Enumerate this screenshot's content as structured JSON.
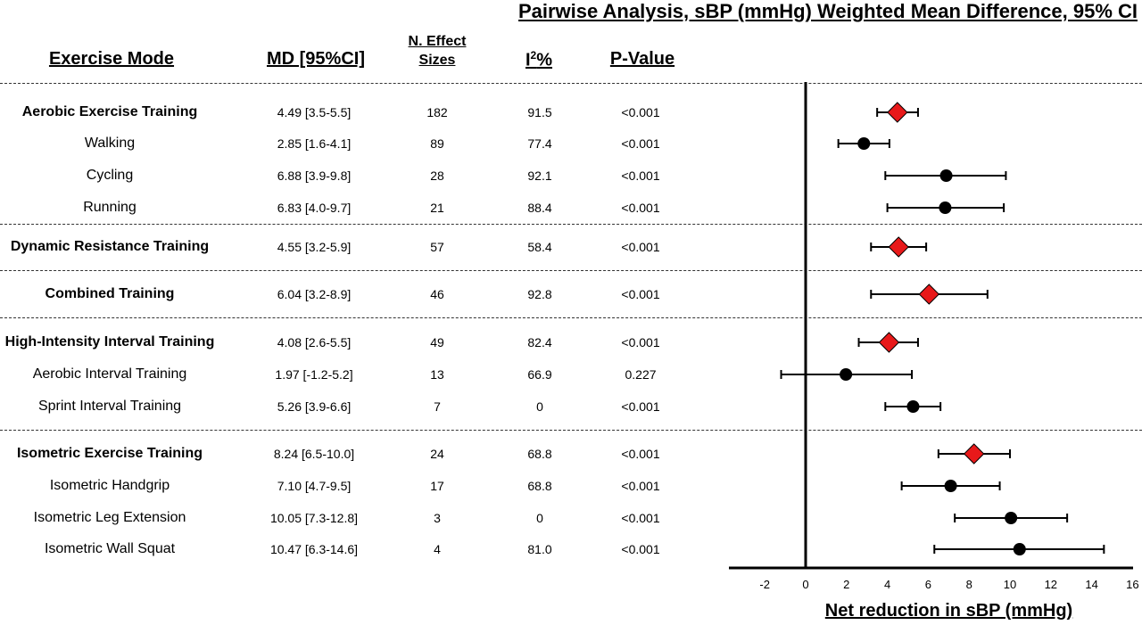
{
  "chart_data": {
    "type": "forest",
    "title": "Pairwise Analysis, sBP (mmHg) Weighted Mean Difference, 95% CI",
    "xlabel": "Net reduction in sBP (mmHg)",
    "xlim": [
      -4,
      16
    ],
    "xticks": [
      "-2",
      "0",
      "2",
      "4",
      "6",
      "8",
      "10",
      "12",
      "14",
      "16"
    ],
    "columns": {
      "mode": "Exercise Mode",
      "md": "MD [95%CI]",
      "n_line1": "N. Effect",
      "n_line2": "Sizes",
      "i2_base": "I",
      "i2_sup": "2",
      "i2_suffix": "%",
      "p": "P-Value"
    },
    "marker_colors": {
      "pooled": "#e8191a",
      "sub": "#000000"
    },
    "rows": [
      {
        "label": "Aerobic Exercise Training",
        "bold": true,
        "md_text": "4.49 [3.5-5.5]",
        "n": "182",
        "i2": "91.5",
        "p": "<0.001",
        "est": 4.49,
        "lo": 3.5,
        "hi": 5.5,
        "marker": "diamond"
      },
      {
        "label": "Walking",
        "bold": false,
        "md_text": "2.85 [1.6-4.1]",
        "n": "89",
        "i2": "77.4",
        "p": "<0.001",
        "est": 2.85,
        "lo": 1.6,
        "hi": 4.1,
        "marker": "circle"
      },
      {
        "label": "Cycling",
        "bold": false,
        "md_text": "6.88 [3.9-9.8]",
        "n": "28",
        "i2": "92.1",
        "p": "<0.001",
        "est": 6.88,
        "lo": 3.9,
        "hi": 9.8,
        "marker": "circle"
      },
      {
        "label": "Running",
        "bold": false,
        "md_text": "6.83 [4.0-9.7]",
        "n": "21",
        "i2": "88.4",
        "p": "<0.001",
        "est": 6.83,
        "lo": 4.0,
        "hi": 9.7,
        "marker": "circle"
      },
      {
        "label": "Dynamic Resistance Training",
        "bold": true,
        "md_text": "4.55 [3.2-5.9]",
        "n": "57",
        "i2": "58.4",
        "p": "<0.001",
        "est": 4.55,
        "lo": 3.2,
        "hi": 5.9,
        "marker": "diamond"
      },
      {
        "label": "Combined Training",
        "bold": true,
        "md_text": "6.04 [3.2-8.9]",
        "n": "46",
        "i2": "92.8",
        "p": "<0.001",
        "est": 6.04,
        "lo": 3.2,
        "hi": 8.9,
        "marker": "diamond"
      },
      {
        "label": "High-Intensity Interval Training",
        "bold": true,
        "md_text": "4.08 [2.6-5.5]",
        "n": "49",
        "i2": "82.4",
        "p": "<0.001",
        "est": 4.08,
        "lo": 2.6,
        "hi": 5.5,
        "marker": "diamond"
      },
      {
        "label": "Aerobic Interval Training",
        "bold": false,
        "md_text": "1.97 [-1.2-5.2]",
        "n": "13",
        "i2": "66.9",
        "p": "0.227",
        "est": 1.97,
        "lo": -1.2,
        "hi": 5.2,
        "marker": "circle"
      },
      {
        "label": "Sprint Interval Training",
        "bold": false,
        "md_text": "5.26 [3.9-6.6]",
        "n": "7",
        "i2": "0",
        "p": "<0.001",
        "est": 5.26,
        "lo": 3.9,
        "hi": 6.6,
        "marker": "circle"
      },
      {
        "label": "Isometric Exercise Training",
        "bold": true,
        "md_text": "8.24 [6.5-10.0]",
        "n": "24",
        "i2": "68.8",
        "p": "<0.001",
        "est": 8.24,
        "lo": 6.5,
        "hi": 10.0,
        "marker": "diamond"
      },
      {
        "label": "Isometric Handgrip",
        "bold": false,
        "md_text": "7.10 [4.7-9.5]",
        "n": "17",
        "i2": "68.8",
        "p": "<0.001",
        "est": 7.1,
        "lo": 4.7,
        "hi": 9.5,
        "marker": "circle"
      },
      {
        "label": "Isometric Leg Extension",
        "bold": false,
        "md_text": "10.05 [7.3-12.8]",
        "n": "3",
        "i2": "0",
        "p": "<0.001",
        "est": 10.05,
        "lo": 7.3,
        "hi": 12.8,
        "marker": "circle"
      },
      {
        "label": "Isometric Wall Squat",
        "bold": false,
        "md_text": "10.47 [6.3-14.6]",
        "n": "4",
        "i2": "81.0",
        "p": "<0.001",
        "est": 10.47,
        "lo": 6.3,
        "hi": 14.6,
        "marker": "circle"
      }
    ]
  }
}
